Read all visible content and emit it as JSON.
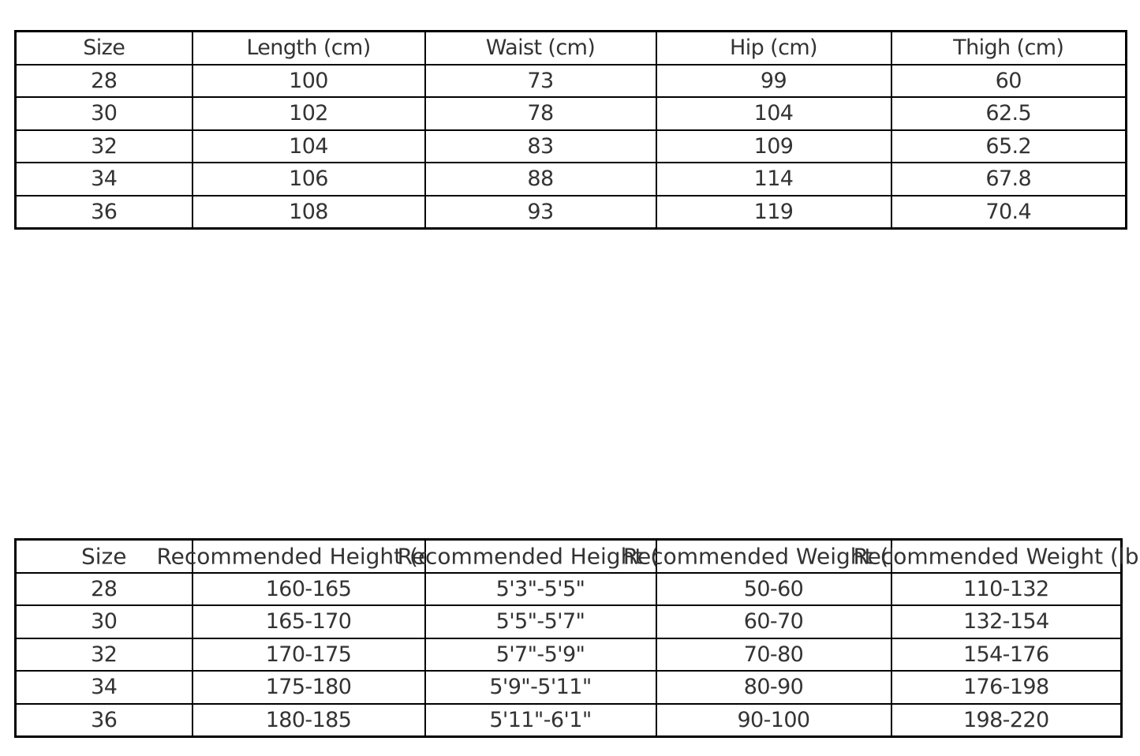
{
  "page": {
    "background_color": "#ffffff",
    "text_color": "#333333",
    "border_color": "#000000"
  },
  "chart_data": [
    {
      "type": "table",
      "name": "garment-size-measurements",
      "headers": [
        "Size",
        "Length (cm)",
        "Waist (cm)",
        "Hip (cm)",
        "Thigh (cm)"
      ],
      "rows": [
        [
          "28",
          "100",
          "73",
          "99",
          "60"
        ],
        [
          "30",
          "102",
          "78",
          "104",
          "62.5"
        ],
        [
          "32",
          "104",
          "83",
          "109",
          "65.2"
        ],
        [
          "34",
          "106",
          "88",
          "114",
          "67.8"
        ],
        [
          "36",
          "108",
          "93",
          "119",
          "70.4"
        ]
      ]
    },
    {
      "type": "table",
      "name": "size-recommendations",
      "headers": [
        "Size",
        "Recommended Height (cm)",
        "Recommended Height (ft)",
        "Recommended Weight (kg)",
        "Recommended Weight (lbs)"
      ],
      "rows": [
        [
          "28",
          "160-165",
          "5'3\"-5'5\"",
          "50-60",
          "110-132"
        ],
        [
          "30",
          "165-170",
          "5'5\"-5'7\"",
          "60-70",
          "132-154"
        ],
        [
          "32",
          "170-175",
          "5'7\"-5'9\"",
          "70-80",
          "154-176"
        ],
        [
          "34",
          "175-180",
          "5'9\"-5'11\"",
          "80-90",
          "176-198"
        ],
        [
          "36",
          "180-185",
          "5'11\"-6'1\"",
          "90-100",
          "198-220"
        ]
      ]
    }
  ]
}
